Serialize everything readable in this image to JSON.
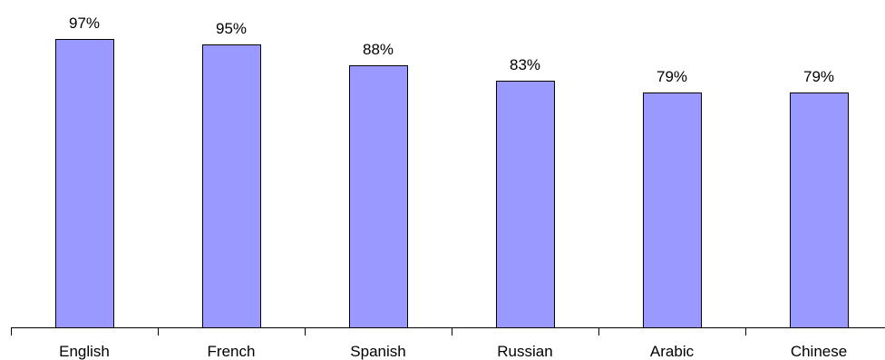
{
  "chart_data": {
    "type": "bar",
    "title": "",
    "xlabel": "",
    "ylabel": "",
    "categories": [
      "English",
      "French",
      "Spanish",
      "Russian",
      "Arabic",
      "Chinese"
    ],
    "values": [
      97,
      95,
      88,
      83,
      79,
      79
    ],
    "value_labels": [
      "97%",
      "95%",
      "88%",
      "83%",
      "79%",
      "79%"
    ],
    "ylim": [
      0,
      100
    ],
    "grid": false,
    "legend": "none",
    "bar_color": "#9999ff",
    "bar_outline_color": "#000000"
  }
}
